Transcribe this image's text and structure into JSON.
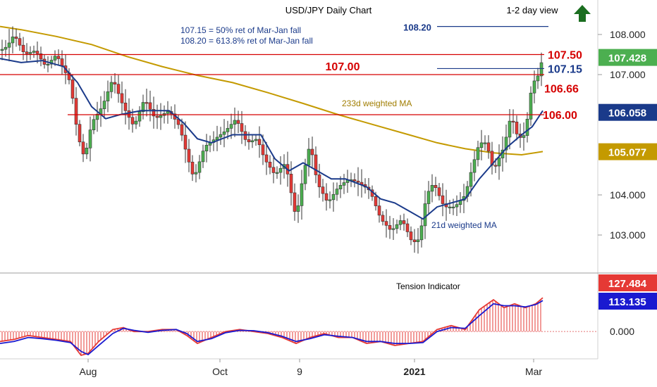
{
  "chart_data": {
    "type": "line",
    "title": "USD/JPY Daily Chart",
    "view": "1-2 day view",
    "view_direction": "up",
    "notes": [
      "107.15 = 50% ret of Mar-Jan fall",
      "108.20 = 613.8% ret of Mar-Jan fall"
    ],
    "price_ticks": [
      "108.000",
      "107.000",
      "104.000",
      "103.000"
    ],
    "x_ticks": [
      "Aug",
      "Oct",
      "9",
      "2021",
      "Mar"
    ],
    "ylim": [
      102.4,
      108.8
    ],
    "levels": [
      {
        "label": "107.50",
        "value": 107.5,
        "color": "#d50000"
      },
      {
        "label": "107.00",
        "value": 107.0,
        "color": "#d50000"
      },
      {
        "label": "106.00",
        "value": 106.0,
        "color": "#d50000"
      },
      {
        "label": "108.20",
        "value": 108.2,
        "color": "#1a3a8a"
      },
      {
        "label": "107.15",
        "value": 107.15,
        "color": "#1a3a8a"
      },
      {
        "label": "106.66",
        "value": 106.66,
        "color": "#d50000"
      }
    ],
    "badges": [
      {
        "label": "107.428",
        "value": 107.428,
        "color": "#4caf50"
      },
      {
        "label": "106.058",
        "value": 106.058,
        "color": "#1a3a8a"
      },
      {
        "label": "105.077",
        "value": 105.077,
        "color": "#c49a00"
      }
    ],
    "ma_labels": {
      "ma233": "233d weighted MA",
      "ma21": "21d weighted MA"
    },
    "series": [
      {
        "name": "233d weighted MA",
        "color": "#c49a00",
        "points": [
          [
            0,
            108.2
          ],
          [
            30,
            108.12
          ],
          [
            80,
            107.95
          ],
          [
            130,
            107.75
          ],
          [
            180,
            107.45
          ],
          [
            230,
            107.2
          ],
          [
            280,
            106.98
          ],
          [
            330,
            106.8
          ],
          [
            380,
            106.55
          ],
          [
            430,
            106.28
          ],
          [
            480,
            106.0
          ],
          [
            530,
            105.75
          ],
          [
            580,
            105.5
          ],
          [
            620,
            105.3
          ],
          [
            660,
            105.15
          ],
          [
            700,
            105.05
          ],
          [
            740,
            105.0
          ],
          [
            770,
            105.08
          ]
        ]
      },
      {
        "name": "21d weighted MA",
        "color": "#1a3a8a",
        "points": [
          [
            0,
            107.4
          ],
          [
            30,
            107.3
          ],
          [
            60,
            107.35
          ],
          [
            90,
            107.2
          ],
          [
            110,
            106.8
          ],
          [
            130,
            106.2
          ],
          [
            150,
            105.9
          ],
          [
            170,
            106.0
          ],
          [
            200,
            106.1
          ],
          [
            240,
            106.1
          ],
          [
            260,
            105.8
          ],
          [
            280,
            105.4
          ],
          [
            300,
            105.3
          ],
          [
            330,
            105.5
          ],
          [
            350,
            105.5
          ],
          [
            370,
            105.5
          ],
          [
            390,
            104.9
          ],
          [
            410,
            104.6
          ],
          [
            430,
            104.8
          ],
          [
            450,
            104.6
          ],
          [
            470,
            104.4
          ],
          [
            490,
            104.4
          ],
          [
            520,
            104.2
          ],
          [
            540,
            103.9
          ],
          [
            560,
            103.8
          ],
          [
            580,
            103.6
          ],
          [
            600,
            103.4
          ],
          [
            620,
            103.7
          ],
          [
            640,
            103.8
          ],
          [
            660,
            103.9
          ],
          [
            680,
            104.4
          ],
          [
            700,
            104.8
          ],
          [
            720,
            105.2
          ],
          [
            740,
            105.5
          ],
          [
            755,
            105.7
          ],
          [
            770,
            106.1
          ]
        ]
      },
      {
        "name": "price",
        "color": "#1a1a1a",
        "points": [
          [
            0,
            107.6
          ],
          [
            10,
            107.7
          ],
          [
            20,
            108.0
          ],
          [
            35,
            107.5
          ],
          [
            50,
            107.6
          ],
          [
            65,
            107.2
          ],
          [
            80,
            107.5
          ],
          [
            100,
            106.8
          ],
          [
            110,
            105.5
          ],
          [
            120,
            104.9
          ],
          [
            130,
            105.8
          ],
          [
            145,
            106.2
          ],
          [
            160,
            106.9
          ],
          [
            175,
            106.2
          ],
          [
            190,
            105.7
          ],
          [
            205,
            106.4
          ],
          [
            220,
            105.9
          ],
          [
            240,
            106.1
          ],
          [
            255,
            105.7
          ],
          [
            265,
            105.0
          ],
          [
            275,
            104.4
          ],
          [
            290,
            105.2
          ],
          [
            305,
            105.4
          ],
          [
            320,
            105.6
          ],
          [
            335,
            105.9
          ],
          [
            350,
            105.3
          ],
          [
            365,
            105.4
          ],
          [
            375,
            104.9
          ],
          [
            390,
            104.5
          ],
          [
            405,
            104.8
          ],
          [
            420,
            103.4
          ],
          [
            430,
            104.5
          ],
          [
            440,
            105.3
          ],
          [
            450,
            104.3
          ],
          [
            465,
            103.8
          ],
          [
            480,
            104.2
          ],
          [
            495,
            104.4
          ],
          [
            510,
            104.3
          ],
          [
            525,
            104.1
          ],
          [
            540,
            103.4
          ],
          [
            555,
            103.1
          ],
          [
            570,
            103.4
          ],
          [
            585,
            102.8
          ],
          [
            595,
            102.9
          ],
          [
            605,
            104.0
          ],
          [
            615,
            104.3
          ],
          [
            630,
            103.7
          ],
          [
            645,
            103.7
          ],
          [
            660,
            104.0
          ],
          [
            670,
            104.7
          ],
          [
            680,
            105.3
          ],
          [
            690,
            105.3
          ],
          [
            700,
            104.6
          ],
          [
            715,
            105.2
          ],
          [
            725,
            106.0
          ],
          [
            735,
            105.4
          ],
          [
            745,
            105.5
          ],
          [
            755,
            106.8
          ],
          [
            762,
            106.9
          ],
          [
            770,
            107.43
          ]
        ]
      }
    ],
    "tension": {
      "title": "Tension Indicator",
      "ticks": [
        "0.000"
      ],
      "badges": [
        {
          "label": "127.484",
          "value": 127.484,
          "color": "#e53935"
        },
        {
          "label": "113.135",
          "value": 113.135,
          "color": "#1a1ad0"
        }
      ],
      "ylim": [
        -60,
        135
      ],
      "series": [
        {
          "name": "red",
          "color": "#e53935",
          "points": [
            [
              0,
              -25
            ],
            [
              20,
              -20
            ],
            [
              40,
              -10
            ],
            [
              60,
              -15
            ],
            [
              80,
              -20
            ],
            [
              100,
              -25
            ],
            [
              115,
              -60
            ],
            [
              125,
              -55
            ],
            [
              140,
              -25
            ],
            [
              160,
              5
            ],
            [
              175,
              10
            ],
            [
              190,
              0
            ],
            [
              210,
              0
            ],
            [
              230,
              5
            ],
            [
              250,
              5
            ],
            [
              265,
              -10
            ],
            [
              280,
              -30
            ],
            [
              300,
              -15
            ],
            [
              320,
              0
            ],
            [
              340,
              5
            ],
            [
              360,
              0
            ],
            [
              380,
              -5
            ],
            [
              400,
              -15
            ],
            [
              420,
              -30
            ],
            [
              440,
              -15
            ],
            [
              460,
              -5
            ],
            [
              480,
              -15
            ],
            [
              500,
              -15
            ],
            [
              520,
              -30
            ],
            [
              540,
              -25
            ],
            [
              560,
              -35
            ],
            [
              580,
              -30
            ],
            [
              600,
              -25
            ],
            [
              620,
              5
            ],
            [
              640,
              15
            ],
            [
              660,
              5
            ],
            [
              680,
              55
            ],
            [
              700,
              80
            ],
            [
              715,
              60
            ],
            [
              730,
              70
            ],
            [
              745,
              60
            ],
            [
              760,
              70
            ],
            [
              770,
              85
            ]
          ]
        },
        {
          "name": "blue",
          "color": "#1a1ad0",
          "points": [
            [
              0,
              -30
            ],
            [
              20,
              -25
            ],
            [
              40,
              -15
            ],
            [
              60,
              -18
            ],
            [
              80,
              -22
            ],
            [
              100,
              -28
            ],
            [
              115,
              -50
            ],
            [
              125,
              -58
            ],
            [
              140,
              -35
            ],
            [
              160,
              -5
            ],
            [
              175,
              8
            ],
            [
              190,
              3
            ],
            [
              210,
              -2
            ],
            [
              230,
              3
            ],
            [
              250,
              5
            ],
            [
              265,
              -5
            ],
            [
              280,
              -25
            ],
            [
              300,
              -18
            ],
            [
              320,
              -3
            ],
            [
              340,
              3
            ],
            [
              360,
              2
            ],
            [
              380,
              -3
            ],
            [
              400,
              -12
            ],
            [
              420,
              -25
            ],
            [
              440,
              -18
            ],
            [
              460,
              -8
            ],
            [
              480,
              -12
            ],
            [
              500,
              -15
            ],
            [
              520,
              -25
            ],
            [
              540,
              -25
            ],
            [
              560,
              -30
            ],
            [
              580,
              -30
            ],
            [
              600,
              -28
            ],
            [
              620,
              0
            ],
            [
              640,
              10
            ],
            [
              660,
              8
            ],
            [
              680,
              40
            ],
            [
              700,
              70
            ],
            [
              715,
              65
            ],
            [
              730,
              65
            ],
            [
              745,
              62
            ],
            [
              760,
              68
            ],
            [
              770,
              78
            ]
          ]
        }
      ]
    }
  }
}
